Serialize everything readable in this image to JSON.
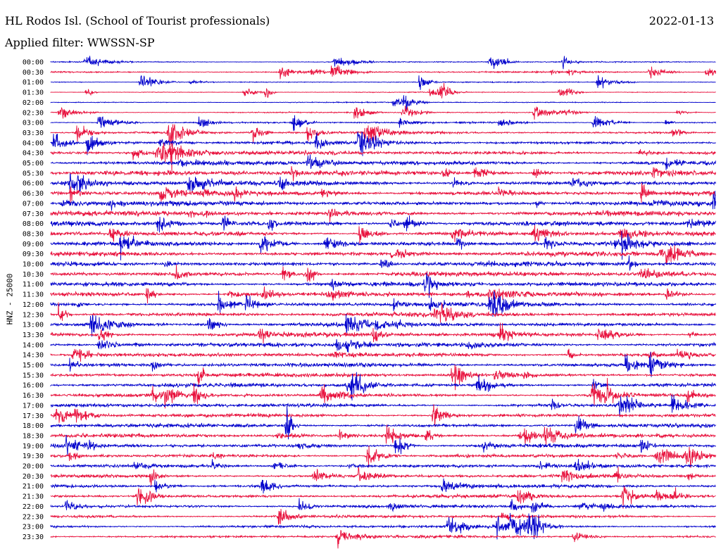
{
  "header": {
    "station": "HL Rodos Isl. (School of Tourist professionals)",
    "filter_label": "Applied filter: WWSSN-SP",
    "date": "2022-01-13"
  },
  "chart_data": {
    "type": "line",
    "title": "HL Rodos Isl. (School of Tourist professionals)",
    "ylabel": "HNZ - 25000",
    "xlabel": "",
    "grid": false,
    "line_labels": [
      "00:00",
      "00:30",
      "01:00",
      "01:30",
      "02:00",
      "02:30",
      "03:00",
      "03:30",
      "04:00",
      "04:30",
      "05:00",
      "05:30",
      "06:00",
      "06:30",
      "07:00",
      "07:30",
      "08:00",
      "08:30",
      "09:00",
      "09:30",
      "10:00",
      "10:30",
      "11:00",
      "11:30",
      "12:00",
      "12:30",
      "13:00",
      "13:30",
      "14:00",
      "14:30",
      "15:00",
      "15:30",
      "16:00",
      "16:30",
      "17:00",
      "17:30",
      "18:00",
      "18:30",
      "19:00",
      "19:30",
      "20:00",
      "20:30",
      "21:00",
      "21:30",
      "22:00",
      "22:30",
      "23:00",
      "23:30"
    ],
    "colors": [
      "#0000cc",
      "#e8103c"
    ],
    "noise_levels": [
      0.35,
      0.45,
      0.3,
      0.25,
      0.3,
      0.35,
      0.5,
      0.8,
      1.0,
      1.2,
      1.3,
      1.5,
      1.4,
      1.5,
      1.5,
      1.5,
      1.4,
      1.3,
      1.3,
      1.4,
      1.4,
      1.4,
      1.4,
      1.4,
      1.3,
      1.3,
      1.3,
      1.3,
      1.3,
      1.2,
      1.2,
      1.2,
      1.2,
      1.1,
      1.1,
      1.1,
      1.1,
      1.1,
      1.1,
      1.0,
      1.0,
      1.0,
      1.0,
      1.0,
      1.0,
      0.9,
      0.9,
      0.8
    ]
  }
}
